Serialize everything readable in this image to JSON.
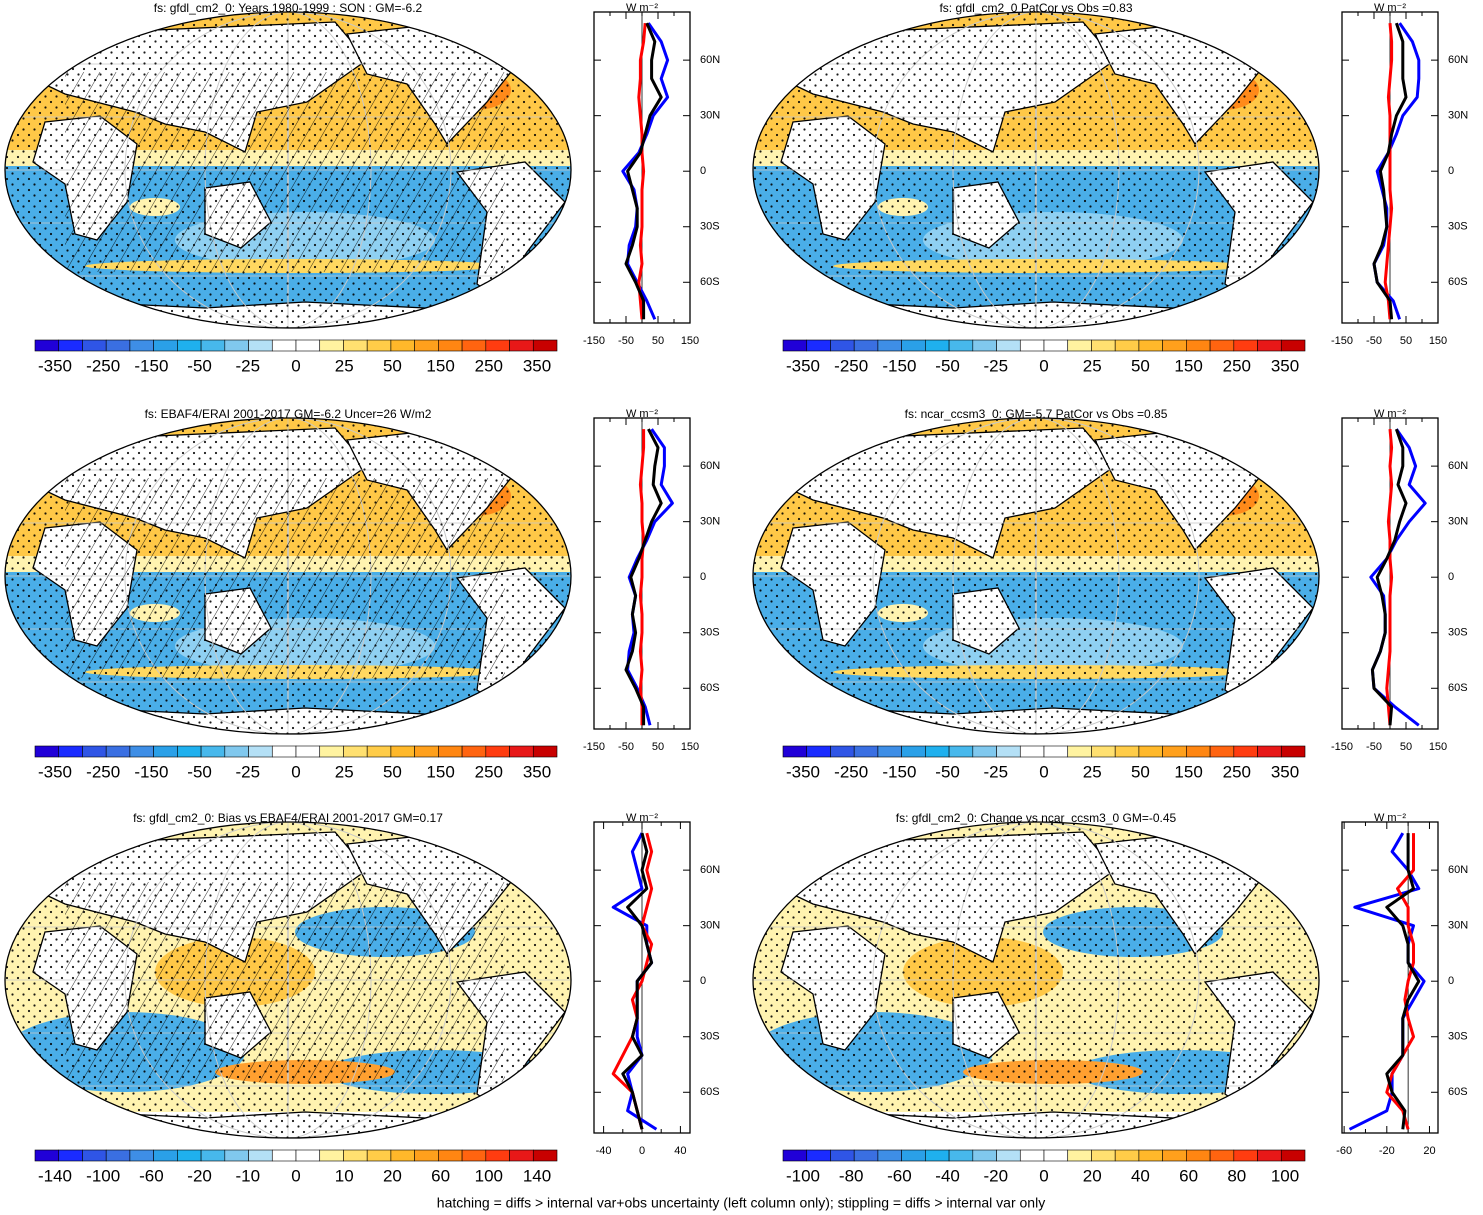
{
  "chart_data": [
    {
      "type": "line",
      "title": "fs: gfdl_cm2_0: Years 1980-1999 : SON : GM=-6.2",
      "xlabel": "W m⁻²",
      "colorbar": [
        -350,
        -250,
        -150,
        -50,
        -25,
        0,
        25,
        50,
        150,
        250,
        350
      ],
      "xlim": [
        -150,
        150
      ],
      "xticks": [
        -150,
        -50,
        50,
        150
      ],
      "xminorticks": [
        -100,
        0,
        100
      ],
      "ylim": [
        -82,
        86
      ],
      "yticks": [
        {
          "value": 60,
          "label": "60N"
        },
        {
          "value": 30,
          "label": "30N"
        },
        0,
        {
          "value": -30,
          "label": "30S"
        },
        {
          "value": -60,
          "label": "60S"
        }
      ],
      "y": [
        -80,
        -70,
        -60,
        -50,
        -40,
        -30,
        -20,
        -10,
        0,
        10,
        20,
        30,
        40,
        50,
        60,
        70,
        80
      ],
      "series": [
        {
          "color": "#0000ff",
          "values": [
            40,
            15,
            -15,
            -45,
            -40,
            -20,
            -15,
            -25,
            -60,
            -10,
            15,
            35,
            80,
            60,
            80,
            60,
            20
          ]
        },
        {
          "color": "#ff0000",
          "values": [
            0,
            -5,
            -10,
            0,
            -5,
            0,
            0,
            0,
            5,
            0,
            0,
            -5,
            -10,
            -5,
            -5,
            5,
            10
          ]
        },
        {
          "color": "#000000",
          "values": [
            5,
            5,
            -20,
            -50,
            -30,
            -15,
            -15,
            -30,
            -45,
            -5,
            10,
            25,
            60,
            30,
            30,
            40,
            15
          ]
        }
      ]
    },
    {
      "type": "line",
      "title": "fs: gfdl_cm2_0 PatCor vs Obs =0.83",
      "xlabel": "W m⁻²",
      "colorbar": [
        -350,
        -250,
        -150,
        -50,
        -25,
        0,
        25,
        50,
        150,
        250,
        350
      ],
      "xlim": [
        -150,
        150
      ],
      "xticks": [
        -150,
        -50,
        50,
        150
      ],
      "xminorticks": [
        -100,
        0,
        100
      ],
      "ylim": [
        -82,
        86
      ],
      "yticks": [
        {
          "value": 60,
          "label": "60N"
        },
        {
          "value": 30,
          "label": "30N"
        },
        0,
        {
          "value": -30,
          "label": "30S"
        },
        {
          "value": -60,
          "label": "60S"
        }
      ],
      "y": [
        -80,
        -70,
        -60,
        -50,
        -40,
        -30,
        -20,
        -10,
        0,
        10,
        20,
        30,
        40,
        50,
        60,
        70,
        80
      ],
      "series": [
        {
          "color": "#0000ff",
          "values": [
            30,
            10,
            -40,
            -50,
            -20,
            -10,
            -10,
            -25,
            -40,
            -5,
            20,
            40,
            85,
            90,
            90,
            70,
            30
          ]
        },
        {
          "color": "#ff0000",
          "values": [
            0,
            -5,
            -15,
            -10,
            -5,
            0,
            5,
            0,
            0,
            0,
            0,
            0,
            -5,
            0,
            5,
            5,
            0
          ]
        },
        {
          "color": "#000000",
          "values": [
            5,
            0,
            -40,
            -50,
            -25,
            -10,
            -15,
            -20,
            -30,
            -5,
            5,
            20,
            50,
            40,
            40,
            40,
            20
          ]
        }
      ]
    },
    {
      "type": "line",
      "title": "fs: EBAF4/ERAI 2001-2017 GM=-6.2 Uncer=26 W/m2",
      "xlabel": "W m⁻²",
      "colorbar": [
        -350,
        -250,
        -150,
        -50,
        -25,
        0,
        25,
        50,
        150,
        250,
        350
      ],
      "xlim": [
        -150,
        150
      ],
      "xticks": [
        -150,
        -50,
        50,
        150
      ],
      "xminorticks": [
        -100,
        0,
        100
      ],
      "ylim": [
        -82,
        86
      ],
      "yticks": [
        {
          "value": 60,
          "label": "60N"
        },
        {
          "value": 30,
          "label": "30N"
        },
        0,
        {
          "value": -30,
          "label": "30S"
        },
        {
          "value": -60,
          "label": "60S"
        }
      ],
      "y": [
        -80,
        -70,
        -60,
        -50,
        -40,
        -30,
        -20,
        -10,
        0,
        10,
        20,
        30,
        40,
        50,
        60,
        70,
        80
      ],
      "series": [
        {
          "color": "#0000ff",
          "values": [
            25,
            10,
            -15,
            -45,
            -40,
            -25,
            -30,
            -20,
            -40,
            -15,
            15,
            40,
            95,
            60,
            70,
            70,
            30
          ]
        },
        {
          "color": "#ff0000",
          "values": [
            0,
            0,
            -5,
            0,
            -5,
            0,
            0,
            -5,
            0,
            0,
            5,
            0,
            0,
            -5,
            0,
            5,
            5
          ]
        },
        {
          "color": "#000000",
          "values": [
            5,
            5,
            -20,
            -50,
            -30,
            -20,
            -30,
            -20,
            -35,
            -10,
            10,
            30,
            60,
            35,
            40,
            50,
            20
          ]
        }
      ]
    },
    {
      "type": "line",
      "title": "fs: ncar_ccsm3_0: GM=-5.7 PatCor vs Obs =0.85",
      "xlabel": "W m⁻²",
      "colorbar": [
        -350,
        -250,
        -150,
        -50,
        -25,
        0,
        25,
        50,
        150,
        250,
        350
      ],
      "xlim": [
        -150,
        150
      ],
      "xticks": [
        -150,
        -50,
        50,
        150
      ],
      "xminorticks": [
        -100,
        0,
        100
      ],
      "ylim": [
        -82,
        86
      ],
      "yticks": [
        {
          "value": 60,
          "label": "60N"
        },
        {
          "value": 30,
          "label": "30N"
        },
        0,
        {
          "value": -30,
          "label": "30S"
        },
        {
          "value": -60,
          "label": "60S"
        }
      ],
      "y": [
        -80,
        -70,
        -60,
        -50,
        -40,
        -30,
        -20,
        -10,
        0,
        10,
        20,
        30,
        40,
        50,
        60,
        70,
        80
      ],
      "series": [
        {
          "color": "#0000ff",
          "values": [
            90,
            15,
            -50,
            -55,
            -30,
            -15,
            -15,
            -20,
            -60,
            -10,
            20,
            60,
            110,
            60,
            80,
            60,
            20
          ]
        },
        {
          "color": "#ff0000",
          "values": [
            0,
            -5,
            -10,
            -5,
            0,
            0,
            0,
            0,
            5,
            0,
            0,
            -5,
            0,
            5,
            0,
            5,
            0
          ]
        },
        {
          "color": "#000000",
          "values": [
            0,
            5,
            -50,
            -55,
            -30,
            -15,
            -15,
            -25,
            -40,
            -10,
            15,
            30,
            50,
            25,
            40,
            40,
            20
          ]
        }
      ]
    },
    {
      "type": "line",
      "title": "fs: gfdl_cm2_0: Bias vs EBAF4/ERAI 2001-2017  GM=0.17",
      "xlabel": "W m⁻²",
      "colorbar": [
        -140,
        -100,
        -60,
        -20,
        -10,
        0,
        10,
        20,
        60,
        100,
        140
      ],
      "xlim": [
        -50,
        50
      ],
      "xticks": [
        -40,
        0,
        40
      ],
      "xminorticks": [
        -20,
        20
      ],
      "ylim": [
        -82,
        86
      ],
      "yticks": [
        {
          "value": 60,
          "label": "60N"
        },
        {
          "value": 30,
          "label": "30N"
        },
        0,
        {
          "value": -30,
          "label": "30S"
        },
        {
          "value": -60,
          "label": "60S"
        }
      ],
      "y": [
        -80,
        -70,
        -60,
        -50,
        -40,
        -30,
        -20,
        -10,
        0,
        10,
        20,
        30,
        40,
        50,
        60,
        70,
        80
      ],
      "series": [
        {
          "color": "#0000ff",
          "values": [
            15,
            -15,
            -10,
            -15,
            0,
            -5,
            -5,
            -5,
            -5,
            10,
            5,
            5,
            -30,
            0,
            -5,
            -10,
            0
          ]
        },
        {
          "color": "#ff0000",
          "values": [
            0,
            -5,
            -10,
            -30,
            -20,
            -10,
            -5,
            -10,
            0,
            5,
            10,
            0,
            5,
            10,
            5,
            10,
            5
          ]
        },
        {
          "color": "#000000",
          "values": [
            0,
            -5,
            -10,
            -20,
            0,
            -10,
            -5,
            -5,
            -5,
            10,
            5,
            0,
            -15,
            5,
            0,
            5,
            0
          ]
        }
      ]
    },
    {
      "type": "line",
      "title": "fs: gfdl_cm2_0: Change vs ncar_ccsm3_0 GM=-0.45",
      "xlabel": "W m⁻²",
      "colorbar": [
        -100,
        -80,
        -60,
        -40,
        -20,
        0,
        20,
        40,
        60,
        80,
        100
      ],
      "xlim": [
        -62,
        28
      ],
      "xticks": [
        -60,
        -20,
        20
      ],
      "xminorticks": [
        -40,
        0
      ],
      "ylim": [
        -82,
        86
      ],
      "yticks": [
        {
          "value": 60,
          "label": "60N"
        },
        {
          "value": 30,
          "label": "30N"
        },
        0,
        {
          "value": -30,
          "label": "30S"
        },
        {
          "value": -60,
          "label": "60S"
        }
      ],
      "y": [
        -80,
        -70,
        -60,
        -50,
        -40,
        -30,
        -20,
        -10,
        0,
        10,
        20,
        30,
        40,
        50,
        60,
        70,
        80
      ],
      "series": [
        {
          "color": "#0000ff",
          "values": [
            -55,
            -20,
            -15,
            -15,
            -5,
            -5,
            -5,
            5,
            15,
            0,
            0,
            5,
            -50,
            10,
            0,
            -15,
            -5
          ]
        },
        {
          "color": "#ff0000",
          "values": [
            0,
            -5,
            -20,
            -15,
            -5,
            5,
            0,
            -3,
            0,
            5,
            5,
            0,
            0,
            -10,
            5,
            5,
            5
          ]
        },
        {
          "color": "#000000",
          "values": [
            -5,
            -3,
            -15,
            -20,
            -5,
            -5,
            -5,
            0,
            10,
            0,
            0,
            -5,
            -20,
            5,
            0,
            0,
            0
          ]
        }
      ]
    }
  ],
  "palette": [
    "#2000d8",
    "#1a2bff",
    "#2f55e6",
    "#3a6fe2",
    "#3e8ee6",
    "#2aa0e8",
    "#1fb0ee",
    "#47b8ec",
    "#80c8ee",
    "#b4e0f6",
    "#ffffff",
    "#ffffff",
    "#fff3a0",
    "#ffe070",
    "#ffcc48",
    "#ffb82a",
    "#ffa01c",
    "#ff8612",
    "#ff6410",
    "#ff3c10",
    "#e81818",
    "#c80000"
  ],
  "footnote": "hatching = diffs > internal var+obs uncertainty (left column only); stippling = diffs > internal var only"
}
